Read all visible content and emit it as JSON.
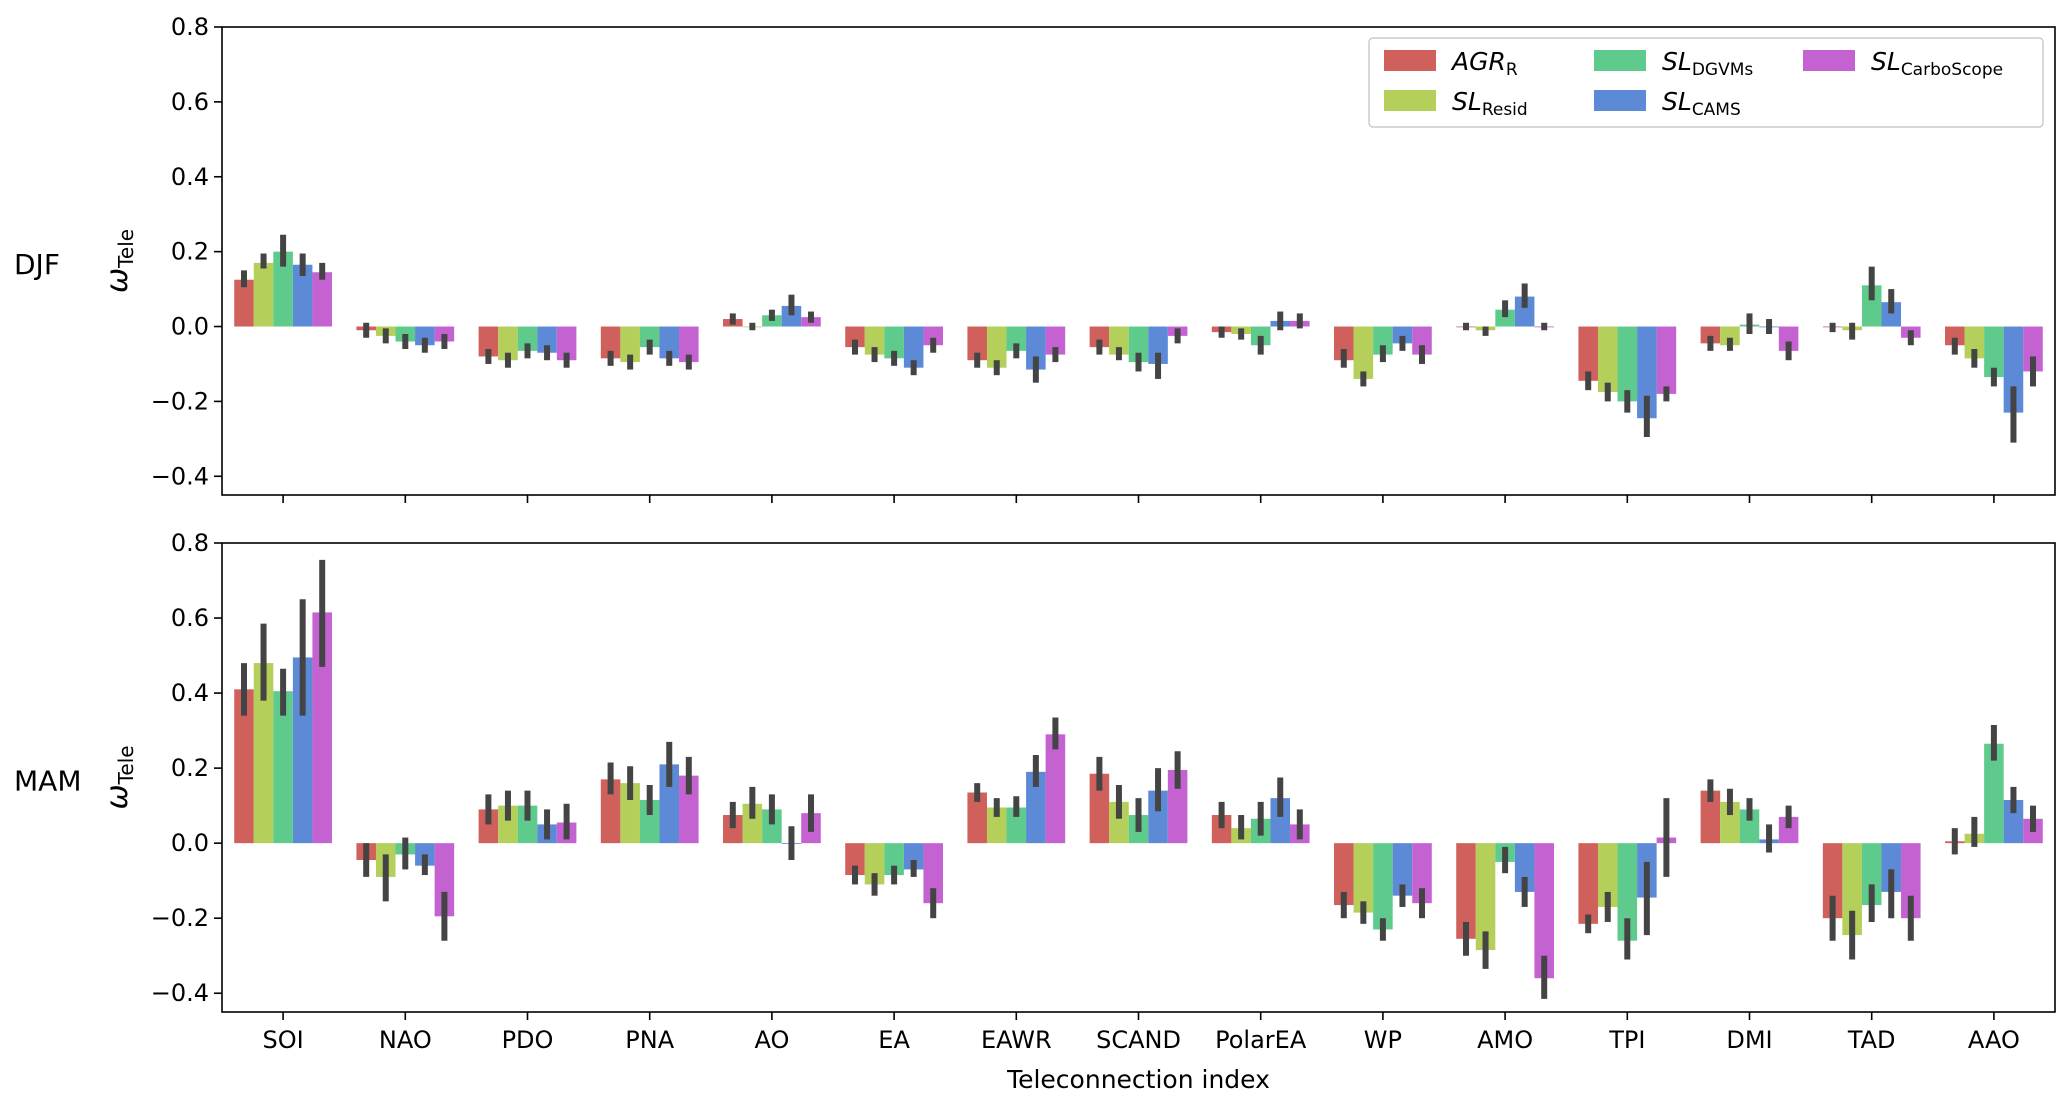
{
  "chart_data": [
    {
      "type": "bar",
      "panel": "DJF",
      "row_label": "DJF",
      "ylabel": {
        "main": "ω",
        "sub": "Tele"
      },
      "ylim": [
        -0.45,
        0.8
      ],
      "yticks": [
        -0.4,
        -0.2,
        0.0,
        0.2,
        0.4,
        0.6,
        0.8
      ],
      "ytick_labels": [
        "−0.4",
        "−0.2",
        "0.0",
        "0.2",
        "0.4",
        "0.6",
        "0.8"
      ],
      "xlabel": "",
      "x_tick_labels_shown": false,
      "grid": false,
      "legend": "top-right",
      "categories": [
        "SOI",
        "NAO",
        "PDO",
        "PNA",
        "AO",
        "EA",
        "EAWR",
        "SCAND",
        "PolarEA",
        "WP",
        "AMO",
        "TPI",
        "DMI",
        "TAD",
        "AAO"
      ],
      "series": [
        {
          "key": "agr",
          "name_main": "AGR",
          "name_sub": "R",
          "color": "#d0605b",
          "values": [
            0.125,
            -0.01,
            -0.08,
            -0.085,
            0.02,
            -0.055,
            -0.09,
            -0.055,
            -0.015,
            -0.09,
            0.0,
            -0.145,
            -0.045,
            0.0,
            -0.05
          ],
          "err": [
            [
              0.105,
              0.15
            ],
            [
              -0.03,
              0.01
            ],
            [
              -0.1,
              -0.06
            ],
            [
              -0.105,
              -0.065
            ],
            [
              0.005,
              0.035
            ],
            [
              -0.075,
              -0.035
            ],
            [
              -0.11,
              -0.07
            ],
            [
              -0.075,
              -0.035
            ],
            [
              -0.03,
              0.0
            ],
            [
              -0.11,
              -0.06
            ],
            [
              -0.01,
              0.01
            ],
            [
              -0.17,
              -0.12
            ],
            [
              -0.065,
              -0.025
            ],
            [
              -0.015,
              0.01
            ],
            [
              -0.075,
              -0.03
            ]
          ]
        },
        {
          "key": "resid",
          "name_main": "SL",
          "name_sub": "Resid",
          "color": "#b4cf5a",
          "values": [
            0.17,
            -0.025,
            -0.09,
            -0.095,
            0.0,
            -0.075,
            -0.11,
            -0.075,
            -0.02,
            -0.14,
            -0.01,
            -0.175,
            -0.05,
            -0.01,
            -0.085
          ],
          "err": [
            [
              0.155,
              0.195
            ],
            [
              -0.045,
              -0.005
            ],
            [
              -0.11,
              -0.07
            ],
            [
              -0.115,
              -0.075
            ],
            [
              -0.01,
              0.01
            ],
            [
              -0.095,
              -0.055
            ],
            [
              -0.13,
              -0.09
            ],
            [
              -0.09,
              -0.055
            ],
            [
              -0.035,
              -0.005
            ],
            [
              -0.16,
              -0.12
            ],
            [
              -0.025,
              0.0
            ],
            [
              -0.2,
              -0.15
            ],
            [
              -0.065,
              -0.03
            ],
            [
              -0.035,
              0.01
            ],
            [
              -0.11,
              -0.06
            ]
          ]
        },
        {
          "key": "dgvm",
          "name_main": "SL",
          "name_sub": "DGVMs",
          "color": "#5ecb8d",
          "values": [
            0.2,
            -0.04,
            -0.065,
            -0.055,
            0.03,
            -0.085,
            -0.065,
            -0.095,
            -0.05,
            -0.075,
            0.045,
            -0.2,
            0.005,
            0.11,
            -0.135
          ],
          "err": [
            [
              0.16,
              0.245
            ],
            [
              -0.06,
              -0.02
            ],
            [
              -0.085,
              -0.045
            ],
            [
              -0.075,
              -0.035
            ],
            [
              0.015,
              0.045
            ],
            [
              -0.105,
              -0.065
            ],
            [
              -0.085,
              -0.045
            ],
            [
              -0.12,
              -0.07
            ],
            [
              -0.075,
              -0.025
            ],
            [
              -0.095,
              -0.05
            ],
            [
              0.025,
              0.07
            ],
            [
              -0.23,
              -0.17
            ],
            [
              -0.02,
              0.035
            ],
            [
              0.07,
              0.16
            ],
            [
              -0.16,
              -0.11
            ]
          ]
        },
        {
          "key": "cams",
          "name_main": "SL",
          "name_sub": "CAMS",
          "color": "#5d8ad6",
          "values": [
            0.165,
            -0.05,
            -0.07,
            -0.085,
            0.055,
            -0.11,
            -0.115,
            -0.1,
            0.015,
            -0.045,
            0.08,
            -0.245,
            0.0,
            0.065,
            -0.23
          ],
          "err": [
            [
              0.135,
              0.195
            ],
            [
              -0.07,
              -0.03
            ],
            [
              -0.09,
              -0.05
            ],
            [
              -0.105,
              -0.065
            ],
            [
              0.03,
              0.085
            ],
            [
              -0.13,
              -0.09
            ],
            [
              -0.15,
              -0.08
            ],
            [
              -0.14,
              -0.07
            ],
            [
              -0.01,
              0.04
            ],
            [
              -0.065,
              -0.025
            ],
            [
              0.05,
              0.115
            ],
            [
              -0.295,
              -0.185
            ],
            [
              -0.02,
              0.02
            ],
            [
              0.035,
              0.1
            ],
            [
              -0.31,
              -0.16
            ]
          ]
        },
        {
          "key": "carbo",
          "name_main": "SL",
          "name_sub": "CarboScope",
          "color": "#c462d2",
          "values": [
            0.145,
            -0.04,
            -0.09,
            -0.095,
            0.025,
            -0.05,
            -0.075,
            -0.025,
            0.015,
            -0.075,
            0.0,
            -0.18,
            -0.065,
            -0.03,
            -0.12
          ],
          "err": [
            [
              0.125,
              0.17
            ],
            [
              -0.06,
              -0.02
            ],
            [
              -0.11,
              -0.07
            ],
            [
              -0.115,
              -0.075
            ],
            [
              0.01,
              0.04
            ],
            [
              -0.07,
              -0.03
            ],
            [
              -0.095,
              -0.055
            ],
            [
              -0.045,
              -0.005
            ],
            [
              -0.005,
              0.035
            ],
            [
              -0.1,
              -0.05
            ],
            [
              -0.01,
              0.01
            ],
            [
              -0.2,
              -0.16
            ],
            [
              -0.09,
              -0.04
            ],
            [
              -0.05,
              -0.01
            ],
            [
              -0.16,
              -0.08
            ]
          ]
        }
      ]
    },
    {
      "type": "bar",
      "panel": "MAM",
      "row_label": "MAM",
      "ylabel": {
        "main": "ω",
        "sub": "Tele"
      },
      "ylim": [
        -0.45,
        0.8
      ],
      "yticks": [
        -0.4,
        -0.2,
        0.0,
        0.2,
        0.4,
        0.6,
        0.8
      ],
      "ytick_labels": [
        "−0.4",
        "−0.2",
        "0.0",
        "0.2",
        "0.4",
        "0.6",
        "0.8"
      ],
      "xlabel": "Teleconnection index",
      "x_tick_labels_shown": true,
      "grid": false,
      "categories": [
        "SOI",
        "NAO",
        "PDO",
        "PNA",
        "AO",
        "EA",
        "EAWR",
        "SCAND",
        "PolarEA",
        "WP",
        "AMO",
        "TPI",
        "DMI",
        "TAD",
        "AAO"
      ],
      "series": [
        {
          "key": "agr",
          "color": "#d0605b",
          "values": [
            0.41,
            -0.045,
            0.09,
            0.17,
            0.075,
            -0.085,
            0.135,
            0.185,
            0.075,
            -0.165,
            -0.255,
            -0.215,
            0.14,
            -0.2,
            0.005
          ],
          "err": [
            [
              0.34,
              0.48
            ],
            [
              -0.09,
              0.0
            ],
            [
              0.05,
              0.13
            ],
            [
              0.13,
              0.215
            ],
            [
              0.04,
              0.11
            ],
            [
              -0.11,
              -0.06
            ],
            [
              0.11,
              0.16
            ],
            [
              0.14,
              0.23
            ],
            [
              0.04,
              0.11
            ],
            [
              -0.2,
              -0.13
            ],
            [
              -0.3,
              -0.21
            ],
            [
              -0.24,
              -0.19
            ],
            [
              0.11,
              0.17
            ],
            [
              -0.26,
              -0.14
            ],
            [
              -0.03,
              0.04
            ]
          ]
        },
        {
          "key": "resid",
          "color": "#b4cf5a",
          "values": [
            0.48,
            -0.09,
            0.1,
            0.16,
            0.105,
            -0.11,
            0.095,
            0.11,
            0.04,
            -0.185,
            -0.285,
            -0.17,
            0.11,
            -0.245,
            0.025
          ],
          "err": [
            [
              0.38,
              0.585
            ],
            [
              -0.155,
              -0.03
            ],
            [
              0.06,
              0.14
            ],
            [
              0.115,
              0.205
            ],
            [
              0.065,
              0.15
            ],
            [
              -0.14,
              -0.08
            ],
            [
              0.07,
              0.12
            ],
            [
              0.065,
              0.155
            ],
            [
              0.01,
              0.075
            ],
            [
              -0.215,
              -0.155
            ],
            [
              -0.335,
              -0.235
            ],
            [
              -0.21,
              -0.13
            ],
            [
              0.075,
              0.145
            ],
            [
              -0.31,
              -0.18
            ],
            [
              -0.01,
              0.07
            ]
          ]
        },
        {
          "key": "dgvm",
          "color": "#5ecb8d",
          "values": [
            0.405,
            -0.03,
            0.1,
            0.115,
            0.09,
            -0.085,
            0.095,
            0.075,
            0.065,
            -0.23,
            -0.05,
            -0.26,
            0.09,
            -0.165,
            0.265
          ],
          "err": [
            [
              0.34,
              0.465
            ],
            [
              -0.07,
              0.015
            ],
            [
              0.06,
              0.14
            ],
            [
              0.075,
              0.155
            ],
            [
              0.05,
              0.13
            ],
            [
              -0.11,
              -0.06
            ],
            [
              0.07,
              0.125
            ],
            [
              0.03,
              0.12
            ],
            [
              0.02,
              0.11
            ],
            [
              -0.26,
              -0.2
            ],
            [
              -0.08,
              -0.01
            ],
            [
              -0.31,
              -0.2
            ],
            [
              0.06,
              0.12
            ],
            [
              -0.21,
              -0.11
            ],
            [
              0.22,
              0.315
            ]
          ]
        },
        {
          "key": "cams",
          "color": "#5d8ad6",
          "values": [
            0.495,
            -0.06,
            0.05,
            0.21,
            0.0,
            -0.07,
            0.19,
            0.14,
            0.12,
            -0.14,
            -0.13,
            -0.145,
            0.01,
            -0.13,
            0.115
          ],
          "err": [
            [
              0.34,
              0.65
            ],
            [
              -0.085,
              -0.03
            ],
            [
              0.01,
              0.09
            ],
            [
              0.15,
              0.27
            ],
            [
              -0.045,
              0.045
            ],
            [
              -0.09,
              -0.045
            ],
            [
              0.15,
              0.235
            ],
            [
              0.085,
              0.2
            ],
            [
              0.07,
              0.175
            ],
            [
              -0.17,
              -0.11
            ],
            [
              -0.17,
              -0.09
            ],
            [
              -0.245,
              -0.05
            ],
            [
              -0.025,
              0.05
            ],
            [
              -0.2,
              -0.07
            ],
            [
              0.08,
              0.15
            ]
          ]
        },
        {
          "key": "carbo",
          "color": "#c462d2",
          "values": [
            0.615,
            -0.195,
            0.055,
            0.18,
            0.08,
            -0.16,
            0.29,
            0.195,
            0.05,
            -0.16,
            -0.36,
            0.015,
            0.07,
            -0.2,
            0.065
          ],
          "err": [
            [
              0.47,
              0.755
            ],
            [
              -0.26,
              -0.13
            ],
            [
              0.01,
              0.105
            ],
            [
              0.13,
              0.23
            ],
            [
              0.03,
              0.13
            ],
            [
              -0.2,
              -0.12
            ],
            [
              0.25,
              0.335
            ],
            [
              0.145,
              0.245
            ],
            [
              0.01,
              0.09
            ],
            [
              -0.2,
              -0.12
            ],
            [
              -0.415,
              -0.3
            ],
            [
              -0.09,
              0.12
            ],
            [
              0.04,
              0.1
            ],
            [
              -0.26,
              -0.14
            ],
            [
              0.03,
              0.1
            ]
          ]
        }
      ]
    }
  ],
  "error_bar_color": "#444444",
  "legend_order": [
    "agr",
    "dgvm",
    "carbo",
    "resid",
    "cams"
  ]
}
